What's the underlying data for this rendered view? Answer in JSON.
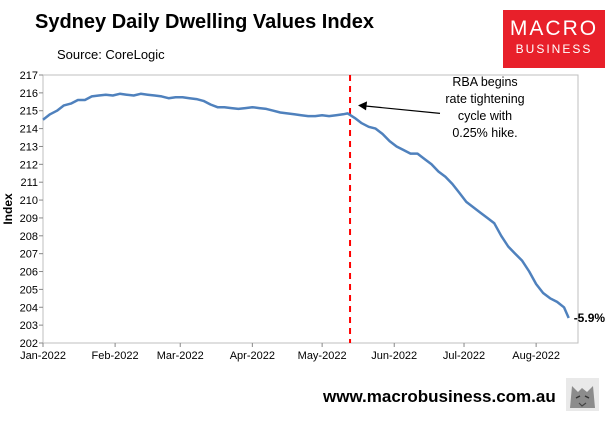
{
  "header": {
    "title": "Sydney Daily Dwelling Values Index",
    "source": "Source: CoreLogic"
  },
  "logo": {
    "line1": "MACRO",
    "line2": "BUSINESS"
  },
  "footer": {
    "url": "www.macrobusiness.com.au"
  },
  "chart_data": {
    "type": "line",
    "title": "Sydney Daily Dwelling Values Index",
    "xlabel": "",
    "ylabel": "Index",
    "ylim": [
      202,
      217
    ],
    "yticks": [
      202,
      203,
      204,
      205,
      206,
      207,
      208,
      209,
      210,
      211,
      212,
      213,
      214,
      215,
      216,
      217
    ],
    "xlim": [
      0,
      230
    ],
    "xticks": [
      {
        "label": "Jan-2022",
        "value": 0
      },
      {
        "label": "Feb-2022",
        "value": 31
      },
      {
        "label": "Mar-2022",
        "value": 59
      },
      {
        "label": "Apr-2022",
        "value": 90
      },
      {
        "label": "May-2022",
        "value": 120
      },
      {
        "label": "Jun-2022",
        "value": 151
      },
      {
        "label": "Jul-2022",
        "value": 181
      },
      {
        "label": "Aug-2022",
        "value": 212
      }
    ],
    "grid": false,
    "series": [
      {
        "name": "Sydney Daily Dwelling Values Index",
        "color": "#4f81bd",
        "points": [
          [
            0,
            214.5
          ],
          [
            3,
            214.8
          ],
          [
            6,
            215.0
          ],
          [
            9,
            215.3
          ],
          [
            12,
            215.4
          ],
          [
            15,
            215.6
          ],
          [
            18,
            215.6
          ],
          [
            21,
            215.8
          ],
          [
            24,
            215.85
          ],
          [
            27,
            215.9
          ],
          [
            30,
            215.85
          ],
          [
            33,
            215.95
          ],
          [
            36,
            215.9
          ],
          [
            39,
            215.85
          ],
          [
            42,
            215.95
          ],
          [
            45,
            215.9
          ],
          [
            48,
            215.85
          ],
          [
            51,
            215.8
          ],
          [
            54,
            215.7
          ],
          [
            57,
            215.75
          ],
          [
            60,
            215.75
          ],
          [
            63,
            215.7
          ],
          [
            66,
            215.65
          ],
          [
            69,
            215.55
          ],
          [
            72,
            215.35
          ],
          [
            75,
            215.2
          ],
          [
            78,
            215.2
          ],
          [
            81,
            215.15
          ],
          [
            84,
            215.1
          ],
          [
            87,
            215.15
          ],
          [
            90,
            215.2
          ],
          [
            93,
            215.15
          ],
          [
            96,
            215.1
          ],
          [
            99,
            215.0
          ],
          [
            102,
            214.9
          ],
          [
            105,
            214.85
          ],
          [
            108,
            214.8
          ],
          [
            111,
            214.75
          ],
          [
            114,
            214.7
          ],
          [
            117,
            214.7
          ],
          [
            120,
            214.75
          ],
          [
            123,
            214.7
          ],
          [
            126,
            214.75
          ],
          [
            129,
            214.8
          ],
          [
            131,
            214.85
          ],
          [
            134,
            214.6
          ],
          [
            137,
            214.3
          ],
          [
            140,
            214.1
          ],
          [
            143,
            214.0
          ],
          [
            146,
            213.7
          ],
          [
            149,
            213.3
          ],
          [
            152,
            213.0
          ],
          [
            155,
            212.8
          ],
          [
            158,
            212.6
          ],
          [
            161,
            212.6
          ],
          [
            164,
            212.3
          ],
          [
            167,
            212.0
          ],
          [
            170,
            211.6
          ],
          [
            173,
            211.3
          ],
          [
            176,
            210.9
          ],
          [
            179,
            210.4
          ],
          [
            182,
            209.9
          ],
          [
            185,
            209.6
          ],
          [
            188,
            209.3
          ],
          [
            191,
            209.0
          ],
          [
            194,
            208.7
          ],
          [
            197,
            208.0
          ],
          [
            200,
            207.4
          ],
          [
            203,
            207.0
          ],
          [
            206,
            206.6
          ],
          [
            209,
            206.0
          ],
          [
            212,
            205.3
          ],
          [
            215,
            204.8
          ],
          [
            218,
            204.5
          ],
          [
            221,
            204.3
          ],
          [
            224,
            204.0
          ],
          [
            226,
            203.4
          ]
        ]
      }
    ],
    "marker": {
      "x": 132,
      "color": "#ff0000",
      "style": "dashed"
    },
    "annotation": {
      "lines": [
        "RBA begins",
        "rate tightening",
        "cycle with",
        "0.25% hike."
      ],
      "arrow_to": [
        132,
        215.3
      ]
    },
    "end_label": "-5.9%"
  }
}
